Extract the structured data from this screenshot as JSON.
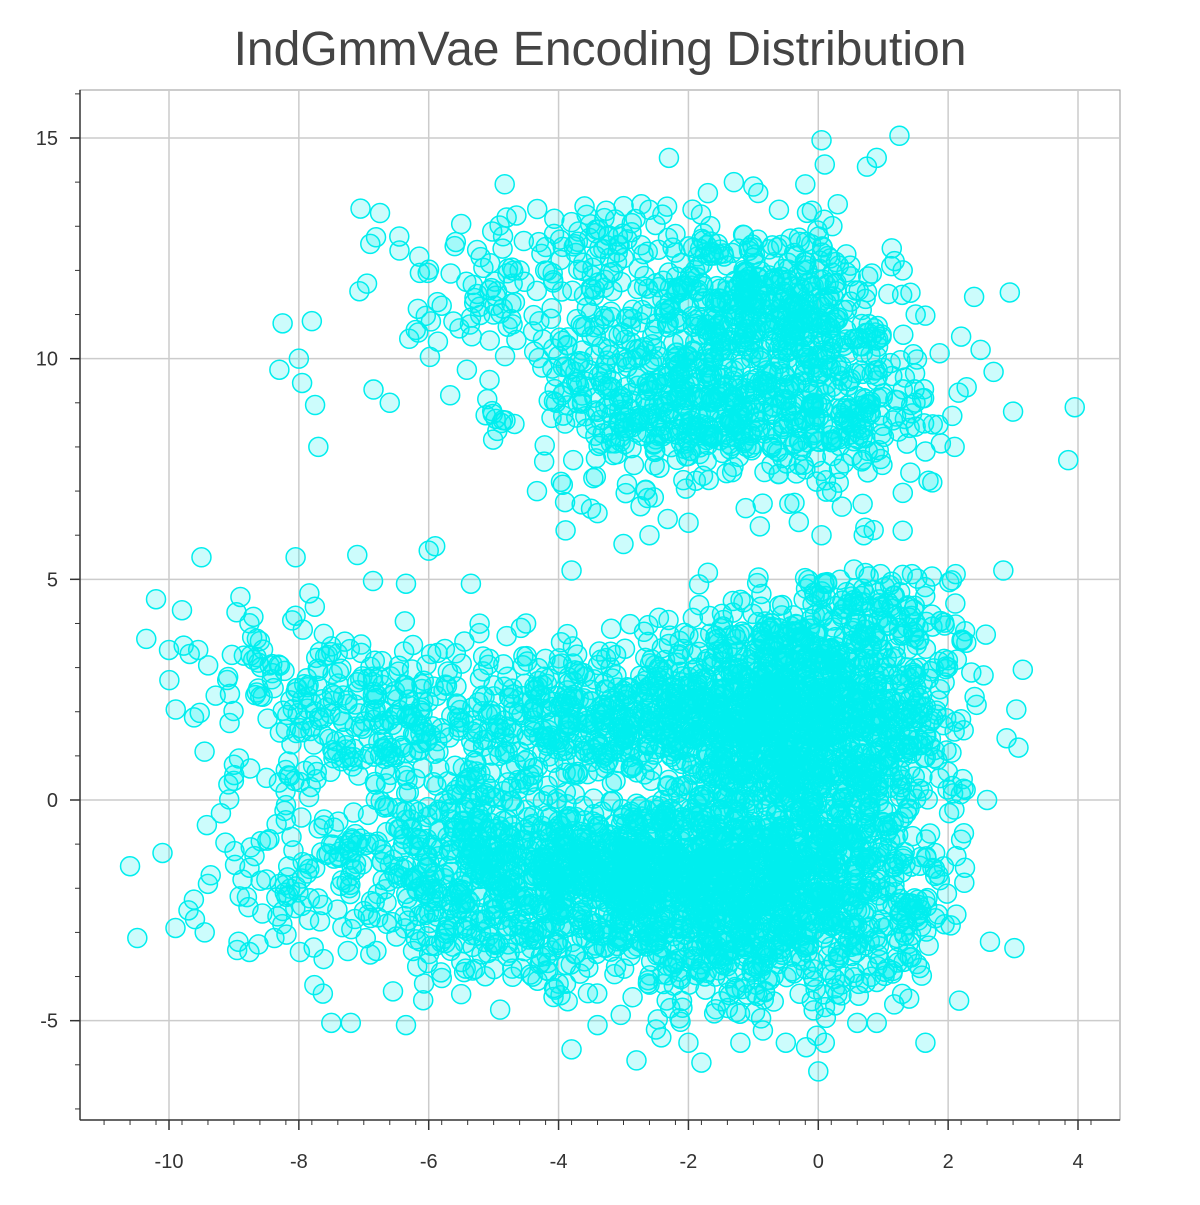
{
  "chart_data": {
    "type": "scatter",
    "title": "IndGmmVae Encoding Distribution",
    "xlabel": "",
    "ylabel": "",
    "xlim": [
      -11.35,
      4.6
    ],
    "ylim": [
      -7.0,
      16.1
    ],
    "x_ticks": [
      -10,
      -8,
      -6,
      -4,
      -2,
      0,
      2,
      4
    ],
    "y_ticks": [
      -5,
      0,
      5,
      10,
      15
    ],
    "x_tick_labels": [
      "-10",
      "-8",
      "-6",
      "-4",
      "-2",
      "0",
      "2",
      "4"
    ],
    "y_tick_labels": [
      "-5",
      "0",
      "5",
      "10",
      "15"
    ],
    "grid": true,
    "legend": "none",
    "marker": {
      "shape": "circle",
      "fill": "#00f0f0",
      "fill_opacity": 0.2,
      "stroke": "#00eeee"
    },
    "clusters_note": "dense point clouds",
    "series": [
      {
        "values": [
          [
            -10.6,
            -1.5
          ],
          [
            -10.35,
            3.65
          ],
          [
            -10.2,
            4.55
          ],
          [
            -10.1,
            -1.2
          ],
          [
            -10.0,
            3.4
          ],
          [
            -9.9,
            -2.9
          ],
          [
            -9.8,
            4.3
          ],
          [
            -9.7,
            -2.5
          ],
          [
            -9.6,
            -2.7
          ],
          [
            -9.55,
            3.4
          ],
          [
            -9.5,
            5.5
          ],
          [
            -9.45,
            -3.0
          ],
          [
            -9.4,
            -1.9
          ],
          [
            -9.2,
            -0.3
          ],
          [
            -9.0,
            0.8
          ],
          [
            -8.95,
            -3.4
          ],
          [
            -8.9,
            4.6
          ],
          [
            -8.8,
            -2.2
          ],
          [
            -8.7,
            4.15
          ],
          [
            -8.6,
            3.6
          ],
          [
            -8.5,
            0.5
          ],
          [
            -8.45,
            3.05
          ],
          [
            -8.3,
            9.75
          ],
          [
            -8.25,
            10.8
          ],
          [
            -8.2,
            1.6
          ],
          [
            -8.05,
            5.5
          ],
          [
            -8.0,
            10.0
          ],
          [
            -7.95,
            9.45
          ],
          [
            -7.85,
            2.6
          ],
          [
            -7.8,
            10.85
          ],
          [
            -7.75,
            8.95
          ],
          [
            -7.7,
            8.0
          ],
          [
            -7.5,
            3.35
          ],
          [
            -7.5,
            -5.05
          ],
          [
            -7.3,
            0.95
          ],
          [
            -7.2,
            -5.05
          ],
          [
            -7.1,
            5.55
          ],
          [
            -7.05,
            13.4
          ],
          [
            -6.95,
            11.7
          ],
          [
            -6.9,
            12.6
          ],
          [
            -6.85,
            9.3
          ],
          [
            -6.75,
            13.3
          ],
          [
            -6.6,
            9.0
          ],
          [
            -6.45,
            12.45
          ],
          [
            -6.35,
            4.9
          ],
          [
            -6.3,
            10.45
          ],
          [
            -6.2,
            10.65
          ],
          [
            -6.0,
            5.65
          ],
          [
            -5.9,
            5.75
          ],
          [
            -5.8,
            11.2
          ],
          [
            -5.6,
            12.55
          ],
          [
            -5.5,
            13.05
          ],
          [
            -5.35,
            4.9
          ],
          [
            -5.2,
            12.3
          ],
          [
            -5.0,
            11.0
          ],
          [
            -4.8,
            13.2
          ],
          [
            -4.6,
            12.0
          ],
          [
            -4.5,
            4.0
          ],
          [
            -4.25,
            9.8
          ],
          [
            -3.9,
            6.75
          ],
          [
            -3.8,
            5.2
          ],
          [
            -3.6,
            13.45
          ],
          [
            -3.4,
            6.5
          ],
          [
            -3.0,
            5.8
          ],
          [
            -2.8,
            -5.9
          ],
          [
            -2.3,
            14.55
          ],
          [
            -1.8,
            -5.95
          ],
          [
            -1.7,
            13.75
          ],
          [
            -1.3,
            14.0
          ],
          [
            -1.0,
            13.9
          ],
          [
            -0.2,
            13.95
          ],
          [
            0.05,
            14.95
          ],
          [
            0.1,
            14.4
          ],
          [
            0.3,
            13.5
          ],
          [
            0.75,
            14.35
          ],
          [
            0.9,
            14.55
          ],
          [
            1.25,
            15.05
          ],
          [
            1.3,
            12.0
          ],
          [
            1.5,
            11.0
          ],
          [
            1.6,
            9.1
          ],
          [
            1.85,
            8.5
          ],
          [
            2.1,
            8.0
          ],
          [
            2.2,
            10.5
          ],
          [
            2.4,
            11.4
          ],
          [
            2.5,
            10.2
          ],
          [
            2.7,
            9.7
          ],
          [
            2.85,
            5.2
          ],
          [
            2.95,
            11.5
          ],
          [
            3.0,
            8.8
          ],
          [
            3.15,
            2.95
          ],
          [
            3.05,
            2.05
          ],
          [
            2.9,
            1.4
          ],
          [
            2.6,
            0.0
          ],
          [
            2.2,
            -0.9
          ],
          [
            1.8,
            -1.2
          ],
          [
            1.7,
            -3.3
          ],
          [
            1.65,
            -5.5
          ],
          [
            1.4,
            -4.5
          ],
          [
            0.9,
            -5.05
          ],
          [
            0.6,
            -5.05
          ],
          [
            0.1,
            -5.5
          ],
          [
            0.0,
            -6.15
          ],
          [
            -0.5,
            -5.5
          ],
          [
            -1.2,
            -5.5
          ],
          [
            -2.0,
            -5.5
          ],
          [
            -2.5,
            -5.2
          ],
          [
            -3.4,
            -5.1
          ],
          [
            -3.8,
            -5.65
          ],
          [
            -4.9,
            -4.75
          ],
          [
            -5.5,
            -4.4
          ],
          [
            -6.35,
            -5.1
          ],
          [
            -6.9,
            -3.5
          ],
          [
            -8.5,
            -1.8
          ],
          [
            3.85,
            7.7
          ],
          [
            3.95,
            8.9
          ],
          [
            1.75,
            4.2
          ],
          [
            1.3,
            5.1
          ],
          [
            1.3,
            6.1
          ],
          [
            0.7,
            6.0
          ],
          [
            0.05,
            6.0
          ],
          [
            -0.3,
            6.3
          ],
          [
            -0.9,
            6.2
          ],
          [
            -1.7,
            5.15
          ],
          [
            -2.6,
            6.0
          ],
          [
            -3.5,
            6.6
          ]
        ]
      }
    ]
  }
}
